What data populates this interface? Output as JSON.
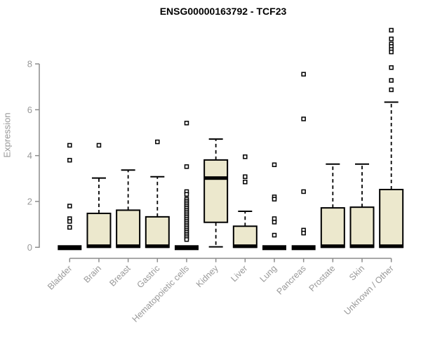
{
  "chart_data": {
    "type": "boxplot",
    "title": "ENSG00000163792 - TCF23",
    "ylabel": "Expression",
    "xlabel": "",
    "yticks": [
      0,
      2,
      4,
      6,
      8
    ],
    "ylim": [
      0,
      9.9
    ],
    "grid": false,
    "legend": "none",
    "categories": [
      "Bladder",
      "Brain",
      "Breast",
      "Gastric",
      "Hematopoietic cells",
      "Kidney",
      "Liver",
      "Lung",
      "Pancreas",
      "Prostate",
      "Skin",
      "Unknown / Other"
    ],
    "boxes": [
      {
        "category": "Bladder",
        "low": 0,
        "q1": 0,
        "median": 0,
        "q3": 0,
        "high": 0,
        "outliers": [
          4.45,
          3.8,
          1.8,
          1.25,
          1.13,
          0.87
        ]
      },
      {
        "category": "Brain",
        "low": 0,
        "q1": 0,
        "median": 0.05,
        "q3": 1.48,
        "high": 3.02,
        "outliers": [
          4.45
        ]
      },
      {
        "category": "Breast",
        "low": 0,
        "q1": 0,
        "median": 0.05,
        "q3": 1.62,
        "high": 3.37,
        "outliers": []
      },
      {
        "category": "Gastric",
        "low": 0,
        "q1": 0,
        "median": 0.05,
        "q3": 1.33,
        "high": 3.08,
        "outliers": [
          4.6
        ]
      },
      {
        "category": "Hematopoietic cells",
        "low": 0,
        "q1": 0,
        "median": 0,
        "q3": 0,
        "high": 0,
        "outliers": [
          5.42,
          3.52,
          2.43,
          2.31,
          2.1,
          2.02,
          1.94,
          1.86,
          1.78,
          1.7,
          1.62,
          1.54,
          1.46,
          1.38,
          1.3,
          1.22,
          1.14,
          1.06,
          0.98,
          0.9,
          0.82,
          0.74,
          0.66,
          0.58,
          0.5,
          0.42,
          0.34
        ]
      },
      {
        "category": "Kidney",
        "low": 0.02,
        "q1": 1.09,
        "median": 3.02,
        "q3": 3.81,
        "high": 4.72,
        "outliers": []
      },
      {
        "category": "Liver",
        "low": 0,
        "q1": 0,
        "median": 0.05,
        "q3": 0.92,
        "high": 1.57,
        "outliers": [
          3.95,
          3.08,
          2.85
        ]
      },
      {
        "category": "Lung",
        "low": 0,
        "q1": 0,
        "median": 0,
        "q3": 0,
        "high": 0,
        "outliers": [
          3.6,
          2.2,
          2.1,
          1.25,
          1.1,
          0.53
        ]
      },
      {
        "category": "Pancreas",
        "low": 0,
        "q1": 0,
        "median": 0,
        "q3": 0,
        "high": 0,
        "outliers": [
          7.55,
          5.6,
          2.43,
          0.75,
          0.62
        ]
      },
      {
        "category": "Prostate",
        "low": 0,
        "q1": 0,
        "median": 0.05,
        "q3": 1.72,
        "high": 3.63,
        "outliers": []
      },
      {
        "category": "Skin",
        "low": 0,
        "q1": 0,
        "median": 0.05,
        "q3": 1.75,
        "high": 3.63,
        "outliers": []
      },
      {
        "category": "Unknown / Other",
        "low": 0,
        "q1": 0,
        "median": 0.05,
        "q3": 2.52,
        "high": 6.33,
        "outliers": [
          9.47,
          9.09,
          8.87,
          8.76,
          8.63,
          8.52,
          7.84,
          7.28,
          6.87
        ]
      }
    ],
    "colors": {
      "box_fill": "#ece8cd",
      "box_border": "#000000",
      "median": "#000000",
      "whisker": "#000000",
      "outlier_stroke": "#000000",
      "outlier_fill": "#ffffff",
      "axis": "#8c8c8c",
      "tick_label": "#999999",
      "title": "#000000",
      "background": "#ffffff"
    }
  }
}
